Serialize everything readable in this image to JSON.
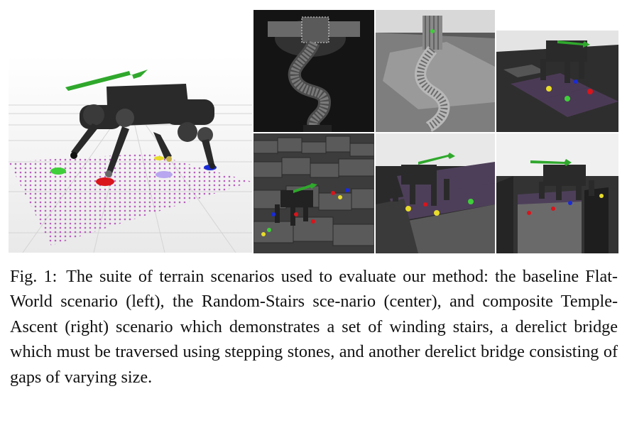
{
  "figure": {
    "caption_label": "Fig. 1:",
    "caption_text": "The suite of terrain scenarios used to evaluate our method: the baseline Flat-World scenario (left), the Random-Stairs sce-nario (center), and composite Temple-Ascent (right) scenario which demonstrates a set of winding stairs, a derelict bridge which must be traversed using stepping stones, and another derelict bridge consisting of gaps of varying size."
  },
  "panels": [
    {
      "name": "flat-world",
      "scene": "quadruped robot on flat ground with foothold grid"
    },
    {
      "name": "temple-top-view",
      "scene": "top view of winding staircase"
    },
    {
      "name": "temple-perspective",
      "scene": "perspective of winding staircase tower"
    },
    {
      "name": "stepping-stones",
      "scene": "robot on stepping stones bridge"
    },
    {
      "name": "random-stairs",
      "scene": "robot on random stairs"
    },
    {
      "name": "stairs-closeup",
      "scene": "robot climbing stairs"
    },
    {
      "name": "gap-bridge",
      "scene": "robot on bridge with gaps"
    }
  ],
  "colors": {
    "sky": "#f4f4f4",
    "robot": "#2a2a2a",
    "grid": "#b24fb8",
    "arrow": "#2fa82c",
    "foot_red": "#d9141b",
    "foot_blue": "#1a2bd6",
    "foot_yellow": "#e8dc2a",
    "foot_green": "#3fcf3a"
  }
}
